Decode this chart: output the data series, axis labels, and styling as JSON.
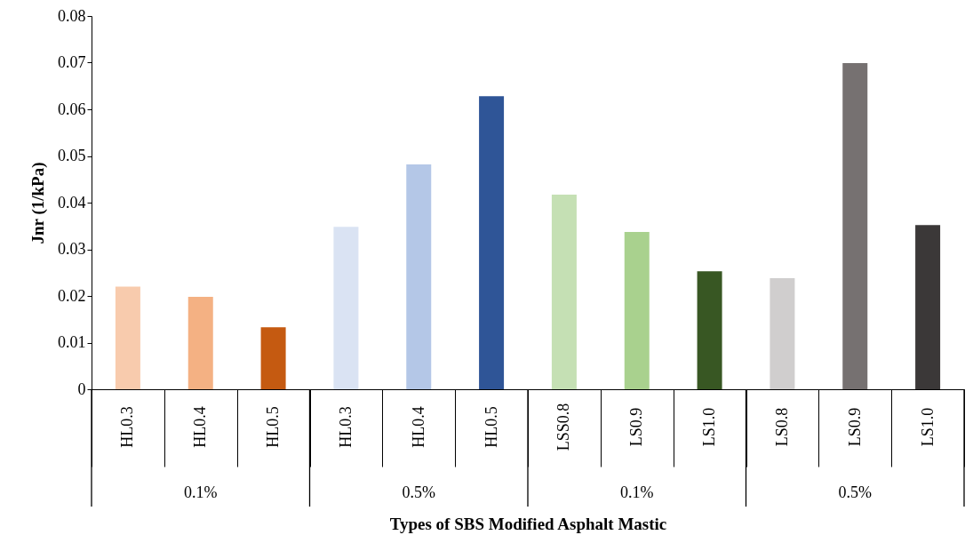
{
  "chart_data": {
    "type": "bar",
    "categories": [
      "HL0.3",
      "HL0.4",
      "HL0.5",
      "HL0.3",
      "HL0.4",
      "HL0.5",
      "LSS0.8",
      "LS0.9",
      "LS1.0",
      "LS0.8",
      "LS0.9",
      "LS1.0"
    ],
    "values": [
      0.022,
      0.0198,
      0.0133,
      0.0348,
      0.0482,
      0.0628,
      0.0417,
      0.0337,
      0.0253,
      0.0238,
      0.0699,
      0.0352
    ],
    "colors": [
      "#f8cbad",
      "#f4b183",
      "#c55a11",
      "#dae3f3",
      "#b4c7e7",
      "#2f5597",
      "#c5e0b4",
      "#a9d18e",
      "#385723",
      "#d0cece",
      "#767171",
      "#3b3838"
    ],
    "xlabel": "Types of SBS Modified Asphalt Mastic",
    "ylabel": "Jnr (1/kPa)",
    "ylim": [
      0,
      0.08
    ],
    "yticks": [
      0,
      0.01,
      0.02,
      0.03,
      0.04,
      0.05,
      0.06,
      0.07,
      0.08
    ],
    "annotations": [
      "0.1%",
      "0.5%",
      "0.1%",
      "0.5%"
    ],
    "grid": false
  }
}
